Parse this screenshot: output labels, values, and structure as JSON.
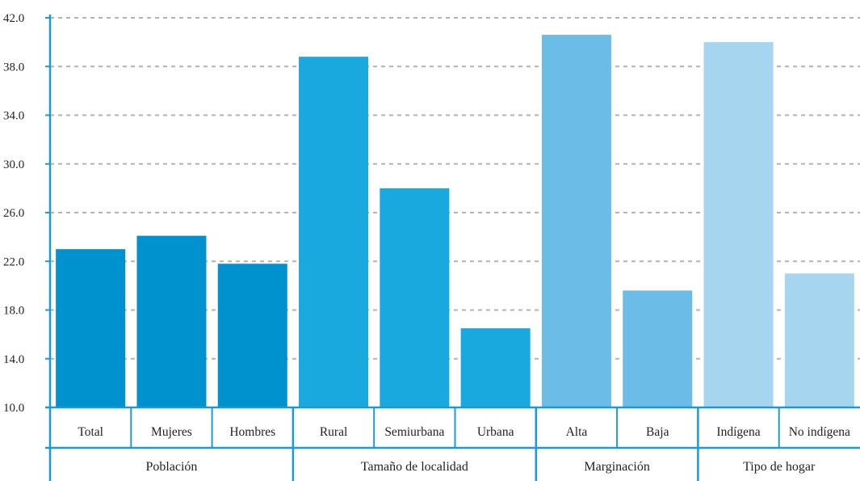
{
  "chart_data": {
    "type": "bar",
    "title": "",
    "xlabel": "",
    "ylabel": "",
    "ylim": [
      10,
      42
    ],
    "yticks": [
      "10.0",
      "14.0",
      "18.0",
      "22.0",
      "26.0",
      "30.0",
      "34.0",
      "38.0",
      "42.0"
    ],
    "grid": true,
    "categories": [
      "Total",
      "Mujeres",
      "Hombres",
      "Rural",
      "Semiurbana",
      "Urbana",
      "Alta",
      "Baja",
      "Indígena",
      "No indígena"
    ],
    "values": [
      23.0,
      24.1,
      21.8,
      38.8,
      28.0,
      16.5,
      40.6,
      19.6,
      40.0,
      21.0
    ],
    "groups": [
      {
        "name": "Población",
        "categories": [
          "Total",
          "Mujeres",
          "Hombres"
        ],
        "color": "#0092cf"
      },
      {
        "name": "Tamaño de localidad",
        "categories": [
          "Rural",
          "Semiurbana",
          "Urbana"
        ],
        "color": "#1aa9de"
      },
      {
        "name": "Marginación",
        "categories": [
          "Alta",
          "Baja"
        ],
        "color": "#6bbce6"
      },
      {
        "name": "Tipo de hogar",
        "categories": [
          "Indígena",
          "No indígena"
        ],
        "color": "#a6d5ef"
      }
    ]
  },
  "colors": {
    "axis": "#1a9bd7",
    "grid": "#b3b3b3",
    "text": "#231f20"
  }
}
